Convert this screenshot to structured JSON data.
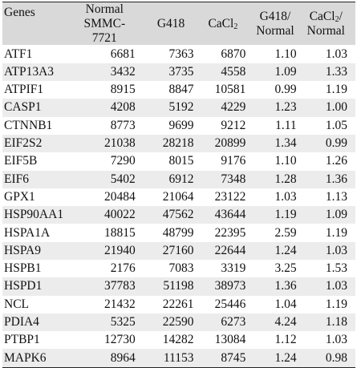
{
  "headers": {
    "genes": "Genes",
    "normal_line1": "Normal",
    "normal_line2": "SMMC-7721",
    "g418": "G418",
    "cacl_base": "CaCl",
    "cacl_sub": "2",
    "ratio1_line1": "G418/",
    "ratio1_line2": "Normal",
    "ratio2_base": "CaCl",
    "ratio2_sub": "2",
    "ratio2_slash": "/",
    "ratio2_line2": "Normal"
  },
  "rows": [
    {
      "gene": "ATF1",
      "normal": "6681",
      "g418": "7363",
      "cacl2": "6870",
      "g418_normal": "1.10",
      "cacl2_normal": "1.03"
    },
    {
      "gene": "ATP13A3",
      "normal": "3432",
      "g418": "3735",
      "cacl2": "4558",
      "g418_normal": "1.09",
      "cacl2_normal": "1.33"
    },
    {
      "gene": "ATPIF1",
      "normal": "8915",
      "g418": "8847",
      "cacl2": "10581",
      "g418_normal": "0.99",
      "cacl2_normal": "1.19"
    },
    {
      "gene": "CASP1",
      "normal": "4208",
      "g418": "5192",
      "cacl2": "4229",
      "g418_normal": "1.23",
      "cacl2_normal": "1.00"
    },
    {
      "gene": "CTNNB1",
      "normal": "8773",
      "g418": "9699",
      "cacl2": "9212",
      "g418_normal": "1.11",
      "cacl2_normal": "1.05"
    },
    {
      "gene": "EIF2S2",
      "normal": "21038",
      "g418": "28218",
      "cacl2": "20899",
      "g418_normal": "1.34",
      "cacl2_normal": "0.99"
    },
    {
      "gene": "EIF5B",
      "normal": "7290",
      "g418": "8015",
      "cacl2": "9176",
      "g418_normal": "1.10",
      "cacl2_normal": "1.26"
    },
    {
      "gene": "EIF6",
      "normal": "5402",
      "g418": "6912",
      "cacl2": "7348",
      "g418_normal": "1.28",
      "cacl2_normal": "1.36"
    },
    {
      "gene": "GPX1",
      "normal": "20484",
      "g418": "21064",
      "cacl2": "23122",
      "g418_normal": "1.03",
      "cacl2_normal": "1.13"
    },
    {
      "gene": "HSP90AA1",
      "normal": "40022",
      "g418": "47562",
      "cacl2": "43644",
      "g418_normal": "1.19",
      "cacl2_normal": "1.09"
    },
    {
      "gene": "HSPA1A",
      "normal": "18815",
      "g418": "48799",
      "cacl2": "22395",
      "g418_normal": "2.59",
      "cacl2_normal": "1.19"
    },
    {
      "gene": "HSPA9",
      "normal": "21940",
      "g418": "27160",
      "cacl2": "22644",
      "g418_normal": "1.24",
      "cacl2_normal": "1.03"
    },
    {
      "gene": "HSPB1",
      "normal": "2176",
      "g418": "7083",
      "cacl2": "3319",
      "g418_normal": "3.25",
      "cacl2_normal": "1.53"
    },
    {
      "gene": "HSPD1",
      "normal": "37783",
      "g418": "51198",
      "cacl2": "38973",
      "g418_normal": "1.36",
      "cacl2_normal": "1.03"
    },
    {
      "gene": "NCL",
      "normal": "21432",
      "g418": "22261",
      "cacl2": "25446",
      "g418_normal": "1.04",
      "cacl2_normal": "1.19"
    },
    {
      "gene": "PDIA4",
      "normal": "5325",
      "g418": "22590",
      "cacl2": "6273",
      "g418_normal": "4.24",
      "cacl2_normal": "1.18"
    },
    {
      "gene": "PTBP1",
      "normal": "12730",
      "g418": "14282",
      "cacl2": "13084",
      "g418_normal": "1.12",
      "cacl2_normal": "1.03"
    },
    {
      "gene": "MAPK6",
      "normal": "8964",
      "g418": "11153",
      "cacl2": "8745",
      "g418_normal": "1.24",
      "cacl2_normal": "0.98"
    }
  ]
}
